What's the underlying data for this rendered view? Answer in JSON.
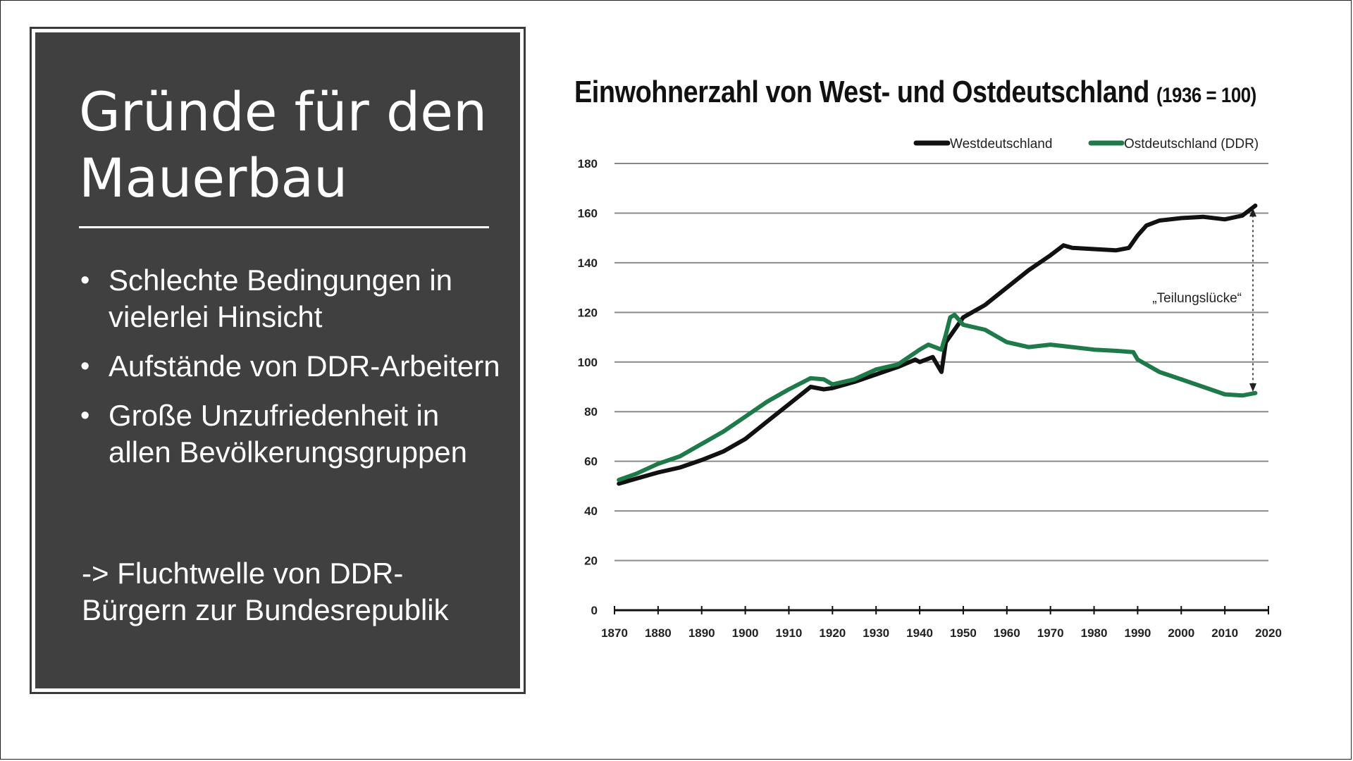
{
  "left_panel": {
    "title": "Gründe für den Mauerbau",
    "bullets": [
      "Schlechte Bedingungen in vielerlei Hinsicht",
      "Aufstände von DDR-Arbeitern",
      "Große Unzufriedenheit in allen Bevölkerungsgruppen"
    ],
    "conclusion": "-> Fluchtwelle von DDR-Bürgern zur Bundesrepublik"
  },
  "chart_data": {
    "type": "line",
    "title": "Einwohnerzahl von West- und Ostdeutschland",
    "subtitle": "(1936 = 100)",
    "xlabel": "",
    "ylabel": "",
    "xlim": [
      1870,
      2020
    ],
    "ylim": [
      0,
      180
    ],
    "x_ticks": [
      1870,
      1880,
      1890,
      1900,
      1910,
      1920,
      1930,
      1940,
      1950,
      1960,
      1970,
      1980,
      1990,
      2000,
      2010,
      2020
    ],
    "y_ticks": [
      0,
      20,
      40,
      60,
      80,
      100,
      120,
      140,
      160,
      180
    ],
    "grid": "horizontal",
    "legend_position": "top-right",
    "annotation": "„Teilungslücke“",
    "series": [
      {
        "name": "Westdeutschland",
        "color": "#111111",
        "points": [
          [
            1871,
            51
          ],
          [
            1875,
            53
          ],
          [
            1880,
            55.5
          ],
          [
            1885,
            57.5
          ],
          [
            1890,
            60.5
          ],
          [
            1895,
            64
          ],
          [
            1900,
            69
          ],
          [
            1905,
            76
          ],
          [
            1910,
            83
          ],
          [
            1915,
            90
          ],
          [
            1918,
            89
          ],
          [
            1920,
            89.5
          ],
          [
            1925,
            92
          ],
          [
            1930,
            95
          ],
          [
            1935,
            98
          ],
          [
            1939,
            101
          ],
          [
            1940,
            100
          ],
          [
            1943,
            102
          ],
          [
            1945,
            96
          ],
          [
            1946,
            108
          ],
          [
            1950,
            118
          ],
          [
            1955,
            123
          ],
          [
            1960,
            130
          ],
          [
            1965,
            137
          ],
          [
            1970,
            143
          ],
          [
            1973,
            147
          ],
          [
            1975,
            146
          ],
          [
            1980,
            145.5
          ],
          [
            1985,
            145
          ],
          [
            1988,
            146
          ],
          [
            1990,
            151
          ],
          [
            1992,
            155
          ],
          [
            1995,
            157
          ],
          [
            2000,
            158
          ],
          [
            2005,
            158.5
          ],
          [
            2010,
            157.5
          ],
          [
            2014,
            159
          ],
          [
            2017,
            163
          ]
        ]
      },
      {
        "name": "Ostdeutschland (DDR)",
        "color": "#1e7a48",
        "points": [
          [
            1871,
            52.5
          ],
          [
            1875,
            55
          ],
          [
            1880,
            59
          ],
          [
            1885,
            62
          ],
          [
            1890,
            67
          ],
          [
            1895,
            72
          ],
          [
            1900,
            78
          ],
          [
            1905,
            84
          ],
          [
            1910,
            89
          ],
          [
            1915,
            93.5
          ],
          [
            1918,
            93
          ],
          [
            1920,
            91
          ],
          [
            1925,
            93
          ],
          [
            1930,
            97
          ],
          [
            1935,
            99
          ],
          [
            1940,
            105
          ],
          [
            1942,
            107
          ],
          [
            1945,
            105
          ],
          [
            1946,
            111
          ],
          [
            1947,
            118
          ],
          [
            1948,
            119
          ],
          [
            1950,
            115
          ],
          [
            1955,
            113
          ],
          [
            1958,
            110
          ],
          [
            1960,
            108
          ],
          [
            1965,
            106
          ],
          [
            1970,
            107
          ],
          [
            1975,
            106
          ],
          [
            1980,
            105
          ],
          [
            1985,
            104.5
          ],
          [
            1989,
            104
          ],
          [
            1990,
            101
          ],
          [
            1995,
            96
          ],
          [
            2000,
            93
          ],
          [
            2005,
            90
          ],
          [
            2010,
            87
          ],
          [
            2014,
            86.5
          ],
          [
            2017,
            87.5
          ]
        ]
      }
    ]
  }
}
